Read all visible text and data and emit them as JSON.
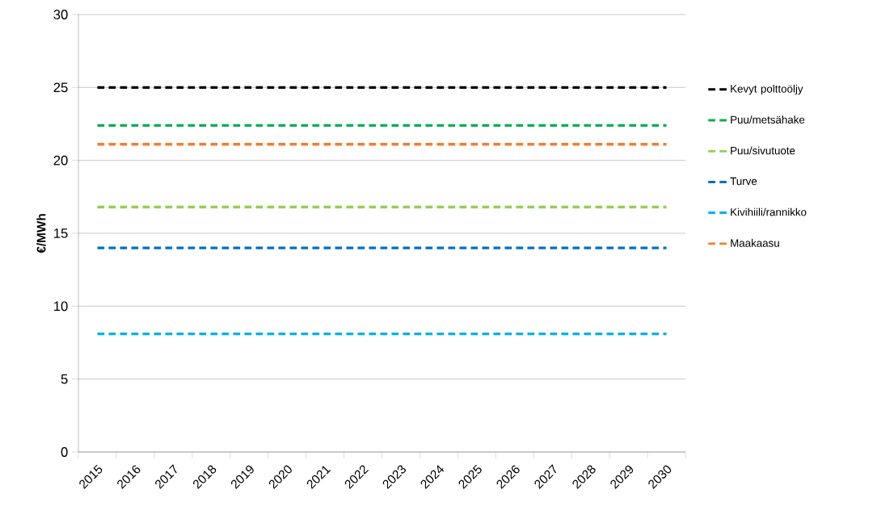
{
  "chart_data": {
    "type": "line",
    "ylabel": "€/MWh",
    "categories": [
      "2015",
      "2016",
      "2017",
      "2018",
      "2019",
      "2020",
      "2021",
      "2022",
      "2023",
      "2024",
      "2025",
      "2026",
      "2027",
      "2028",
      "2029",
      "2030"
    ],
    "series": [
      {
        "name": "Kevyt polttoöljy",
        "color": "#000000",
        "values": [
          25,
          25,
          25,
          25,
          25,
          25,
          25,
          25,
          25,
          25,
          25,
          25,
          25,
          25,
          25,
          25
        ]
      },
      {
        "name": "Puu/metsähake",
        "color": "#00b050",
        "values": [
          22.4,
          22.4,
          22.4,
          22.4,
          22.4,
          22.4,
          22.4,
          22.4,
          22.4,
          22.4,
          22.4,
          22.4,
          22.4,
          22.4,
          22.4,
          22.4
        ]
      },
      {
        "name": "Puu/sivutuote",
        "color": "#92d050",
        "values": [
          16.8,
          16.8,
          16.8,
          16.8,
          16.8,
          16.8,
          16.8,
          16.8,
          16.8,
          16.8,
          16.8,
          16.8,
          16.8,
          16.8,
          16.8,
          16.8
        ]
      },
      {
        "name": "Turve",
        "color": "#0070c0",
        "values": [
          14,
          14,
          14,
          14,
          14,
          14,
          14,
          14,
          14,
          14,
          14,
          14,
          14,
          14,
          14,
          14
        ]
      },
      {
        "name": "Kivihiili/rannikko",
        "color": "#00b0f0",
        "values": [
          8.1,
          8.1,
          8.1,
          8.1,
          8.1,
          8.1,
          8.1,
          8.1,
          8.1,
          8.1,
          8.1,
          8.1,
          8.1,
          8.1,
          8.1,
          8.1
        ]
      },
      {
        "name": "Maakaasu",
        "color": "#f47d30",
        "values": [
          21.1,
          21.1,
          21.1,
          21.1,
          21.1,
          21.1,
          21.1,
          21.1,
          21.1,
          21.1,
          21.1,
          21.1,
          21.1,
          21.1,
          21.1,
          21.1
        ]
      }
    ],
    "ylim": [
      0,
      30
    ],
    "yticks": [
      0,
      5,
      10,
      15,
      20,
      25,
      30
    ],
    "grid": "y",
    "legend": "right",
    "line_style": "dashed",
    "marker": "none"
  }
}
